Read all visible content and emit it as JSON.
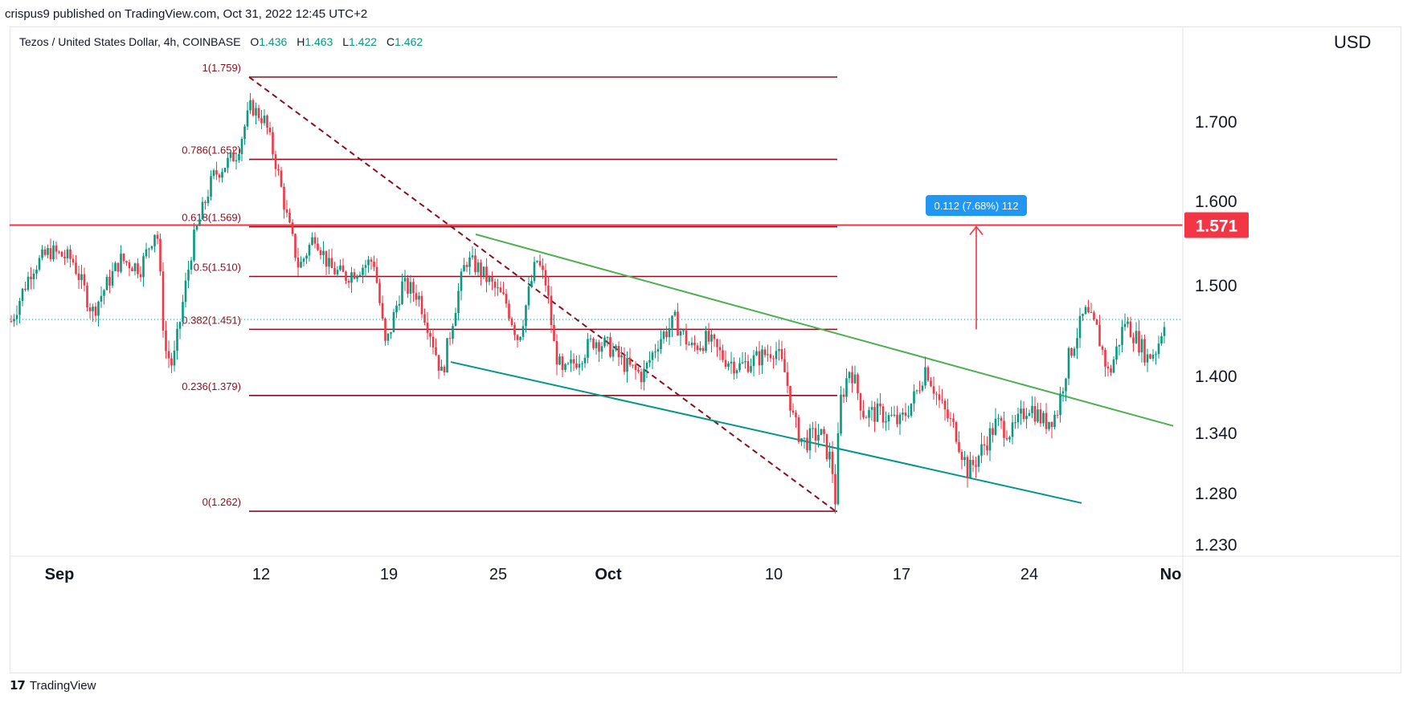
{
  "header": {
    "published_by": "crispus9 published on TradingView.com, Oct 31, 2022 12:45 UTC+2"
  },
  "legend": {
    "symbol": "Tezos / United States Dollar, 4h, COINBASE",
    "open_label": "O",
    "open": "1.436",
    "high_label": "H",
    "high": "1.463",
    "low_label": "L",
    "low": "1.422",
    "close_label": "C",
    "close": "1.462"
  },
  "price_axis": {
    "currency": "USD",
    "current_price": "1.571"
  },
  "footer": {
    "brand": "TradingView"
  },
  "colors": {
    "up": "#089981",
    "down": "#f23645",
    "fib": "#880e1f",
    "channel_upper": "#4caf50",
    "channel_lower": "#009688",
    "resistance": "#f23645",
    "measure_label": "#2196f3"
  },
  "chart_data": {
    "type": "candlestick",
    "x_tick_labels": [
      "Sep",
      "12",
      "19",
      "25",
      "Oct",
      "10",
      "17",
      "24",
      "No"
    ],
    "y_tick_labels": [
      "1.700",
      "1.600",
      "1.500",
      "1.400",
      "1.340",
      "1.280",
      "1.230"
    ],
    "y_ticks": [
      1.7,
      1.6,
      1.5,
      1.4,
      1.34,
      1.28,
      1.23
    ],
    "fibonacci": [
      {
        "label": "1(1.759)",
        "value": 1.759
      },
      {
        "label": "0.786(1.652)",
        "value": 1.652
      },
      {
        "label": "0.618(1.569)",
        "value": 1.569
      },
      {
        "label": "0.5(1.510)",
        "value": 1.51
      },
      {
        "label": "0.382(1.451)",
        "value": 1.451
      },
      {
        "label": "0.236(1.379)",
        "value": 1.379
      },
      {
        "label": "0(1.262)",
        "value": 1.262
      }
    ],
    "resistance": 1.571,
    "measure_label": "0.112 (7.68%) 112",
    "last_close": 1.462
  }
}
